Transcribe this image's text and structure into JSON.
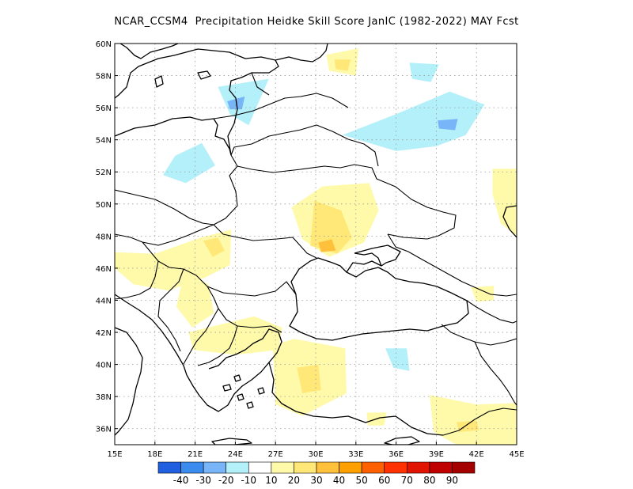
{
  "title": "NCAR_CCSM4  Precipitation Heidke Skill Score JanIC (1982-2022) MAY Fcst",
  "map": {
    "lon_range": [
      15,
      45
    ],
    "lat_range": [
      35,
      60
    ],
    "x_ticks": [
      "15E",
      "18E",
      "21E",
      "24E",
      "27E",
      "30E",
      "33E",
      "36E",
      "39E",
      "42E",
      "45E"
    ],
    "y_ticks": [
      "36N",
      "38N",
      "40N",
      "42N",
      "44N",
      "46N",
      "48N",
      "50N",
      "52N",
      "54N",
      "56N",
      "58N",
      "60N"
    ],
    "grid": "dotted"
  },
  "colorbar": {
    "colors": [
      "#2060e0",
      "#3c8cf0",
      "#78b4f8",
      "#b4f0fa",
      "#ffffff",
      "#fffaaa",
      "#ffe878",
      "#ffc03c",
      "#ffa000",
      "#ff6000",
      "#ff3200",
      "#e11400",
      "#c00000",
      "#a50000"
    ],
    "labels": [
      "-40",
      "-30",
      "-20",
      "-10",
      "10",
      "20",
      "30",
      "40",
      "50",
      "60",
      "70",
      "80",
      "90"
    ]
  },
  "chart_data": {
    "type": "heatmap",
    "title": "NCAR_CCSM4  Precipitation Heidke Skill Score JanIC (1982-2022) MAY Fcst",
    "xlabel": "",
    "ylabel": "",
    "xlim": [
      15,
      45
    ],
    "ylim": [
      35,
      60
    ],
    "regions": [
      {
        "level": "-10",
        "color": "#b4f0fa",
        "pts": [
          [
            19.5,
            53.0
          ],
          [
            21.5,
            53.8
          ],
          [
            22.5,
            52.4
          ],
          [
            20.3,
            51.3
          ],
          [
            18.6,
            51.8
          ]
        ]
      },
      {
        "level": "-10",
        "color": "#b4f0fa",
        "pts": [
          [
            22.7,
            57.3
          ],
          [
            26.5,
            57.8
          ],
          [
            25.0,
            54.9
          ],
          [
            23.6,
            55.6
          ]
        ]
      },
      {
        "level": "-20",
        "color": "#78b4f8",
        "pts": [
          [
            23.4,
            56.4
          ],
          [
            24.7,
            56.7
          ],
          [
            24.5,
            55.9
          ],
          [
            23.6,
            55.9
          ]
        ]
      },
      {
        "level": "-10",
        "color": "#b4f0fa",
        "pts": [
          [
            32.0,
            54.3
          ],
          [
            36.0,
            55.6
          ],
          [
            40.0,
            57.0
          ],
          [
            42.6,
            56.2
          ],
          [
            41.2,
            54.3
          ],
          [
            39.0,
            53.6
          ],
          [
            36.0,
            53.3
          ]
        ]
      },
      {
        "level": "-20",
        "color": "#78b4f8",
        "pts": [
          [
            39.1,
            55.2
          ],
          [
            40.6,
            55.3
          ],
          [
            40.4,
            54.6
          ],
          [
            39.2,
            54.7
          ]
        ]
      },
      {
        "level": "-10",
        "color": "#b4f0fa",
        "pts": [
          [
            37.0,
            58.8
          ],
          [
            39.2,
            58.7
          ],
          [
            38.6,
            57.6
          ],
          [
            37.2,
            57.8
          ]
        ]
      },
      {
        "level": "-10",
        "color": "#b4f0fa",
        "pts": [
          [
            35.2,
            41.0
          ],
          [
            36.8,
            41.0
          ],
          [
            37.0,
            39.6
          ],
          [
            35.8,
            39.8
          ]
        ]
      },
      {
        "level": "10",
        "color": "#fffaaa",
        "pts": [
          [
            30.5,
            51.1
          ],
          [
            34.0,
            51.3
          ],
          [
            34.7,
            49.6
          ],
          [
            33.6,
            47.6
          ],
          [
            31.0,
            46.7
          ],
          [
            29.0,
            47.8
          ],
          [
            28.2,
            49.8
          ]
        ]
      },
      {
        "level": "20",
        "color": "#ffe878",
        "pts": [
          [
            29.9,
            50.2
          ],
          [
            31.9,
            49.6
          ],
          [
            32.7,
            47.9
          ],
          [
            31.6,
            46.9
          ],
          [
            29.6,
            47.4
          ]
        ]
      },
      {
        "level": "30",
        "color": "#ffc03c",
        "pts": [
          [
            30.2,
            47.6
          ],
          [
            31.2,
            47.8
          ],
          [
            31.5,
            47.1
          ],
          [
            30.4,
            47.0
          ]
        ]
      },
      {
        "level": "10",
        "color": "#fffaaa",
        "pts": [
          [
            15.0,
            47.0
          ],
          [
            18.0,
            46.9
          ],
          [
            21.4,
            47.9
          ],
          [
            23.7,
            48.4
          ],
          [
            23.6,
            46.2
          ],
          [
            21.7,
            45.4
          ],
          [
            19.0,
            44.6
          ],
          [
            16.4,
            45.0
          ],
          [
            15.0,
            46.0
          ]
        ]
      },
      {
        "level": "20",
        "color": "#ffe878",
        "pts": [
          [
            21.6,
            47.7
          ],
          [
            22.7,
            47.9
          ],
          [
            23.2,
            47.1
          ],
          [
            22.3,
            46.7
          ]
        ]
      },
      {
        "level": "10",
        "color": "#fffaaa",
        "pts": [
          [
            20.2,
            45.8
          ],
          [
            22.0,
            45.0
          ],
          [
            22.4,
            43.2
          ],
          [
            20.8,
            42.3
          ],
          [
            19.6,
            43.6
          ]
        ]
      },
      {
        "level": "10",
        "color": "#fffaaa",
        "pts": [
          [
            20.5,
            42.0
          ],
          [
            25.4,
            43.0
          ],
          [
            27.5,
            42.3
          ],
          [
            27.2,
            40.9
          ],
          [
            24.0,
            40.6
          ],
          [
            20.9,
            40.9
          ]
        ]
      },
      {
        "level": "10",
        "color": "#fffaaa",
        "pts": [
          [
            26.8,
            41.2
          ],
          [
            28.4,
            41.6
          ],
          [
            32.2,
            41.0
          ],
          [
            32.3,
            38.2
          ],
          [
            29.0,
            36.8
          ],
          [
            27.0,
            37.5
          ]
        ]
      },
      {
        "level": "20",
        "color": "#ffe878",
        "pts": [
          [
            28.6,
            39.8
          ],
          [
            30.2,
            40.0
          ],
          [
            30.4,
            38.4
          ],
          [
            29.0,
            38.2
          ]
        ]
      },
      {
        "level": "10",
        "color": "#fffaaa",
        "pts": [
          [
            30.8,
            59.3
          ],
          [
            33.2,
            59.7
          ],
          [
            33.0,
            58.0
          ],
          [
            31.0,
            58.3
          ]
        ]
      },
      {
        "level": "20",
        "color": "#ffe878",
        "pts": [
          [
            31.4,
            59.0
          ],
          [
            32.6,
            59.0
          ],
          [
            32.4,
            58.3
          ],
          [
            31.5,
            58.4
          ]
        ]
      },
      {
        "level": "10",
        "color": "#fffaaa",
        "pts": [
          [
            43.2,
            52.2
          ],
          [
            45.0,
            52.2
          ],
          [
            45.0,
            48.0
          ],
          [
            43.8,
            48.8
          ],
          [
            43.2,
            50.6
          ]
        ]
      },
      {
        "level": "10",
        "color": "#fffaaa",
        "pts": [
          [
            41.6,
            44.8
          ],
          [
            43.3,
            44.9
          ],
          [
            43.3,
            44.0
          ],
          [
            42.0,
            43.9
          ]
        ]
      },
      {
        "level": "10",
        "color": "#fffaaa",
        "pts": [
          [
            38.5,
            38.1
          ],
          [
            42.0,
            37.5
          ],
          [
            45.0,
            37.6
          ],
          [
            45.0,
            35.0
          ],
          [
            40.5,
            35.0
          ],
          [
            38.8,
            35.8
          ]
        ]
      },
      {
        "level": "20",
        "color": "#ffe878",
        "pts": [
          [
            40.5,
            36.4
          ],
          [
            42.0,
            36.5
          ],
          [
            42.2,
            35.9
          ],
          [
            40.7,
            35.8
          ]
        ]
      },
      {
        "level": "10",
        "color": "#fffaaa",
        "pts": [
          [
            33.8,
            37.0
          ],
          [
            35.3,
            37.0
          ],
          [
            35.1,
            36.2
          ],
          [
            33.9,
            36.2
          ]
        ]
      }
    ]
  }
}
